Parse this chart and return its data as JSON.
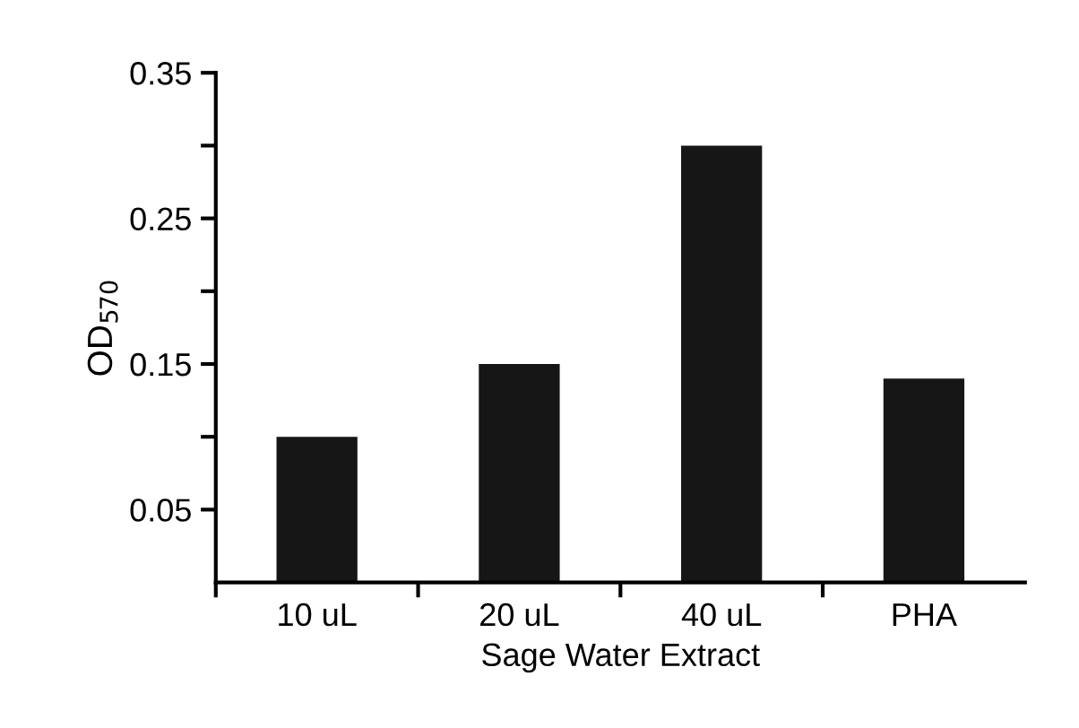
{
  "chart_data": {
    "type": "bar",
    "xlabel": "Sage Water Extract",
    "ylabel": "OD$_{570}$",
    "categories": [
      "10 uL",
      "20 uL",
      "40 uL",
      "PHA"
    ],
    "values": [
      0.1,
      0.15,
      0.3,
      0.14
    ],
    "color": "#161616",
    "ylim": [
      0,
      0.35
    ],
    "yticks": [
      {
        "value": 0.05,
        "label": "0.05"
      },
      {
        "value": 0.1,
        "label": null
      },
      {
        "value": 0.15,
        "label": "0.15"
      },
      {
        "value": 0.2,
        "label": null
      },
      {
        "value": 0.25,
        "label": "0.25"
      },
      {
        "value": 0.3,
        "label": null
      },
      {
        "value": 0.35,
        "label": "0.35"
      }
    ],
    "grid": false,
    "legend": false
  }
}
